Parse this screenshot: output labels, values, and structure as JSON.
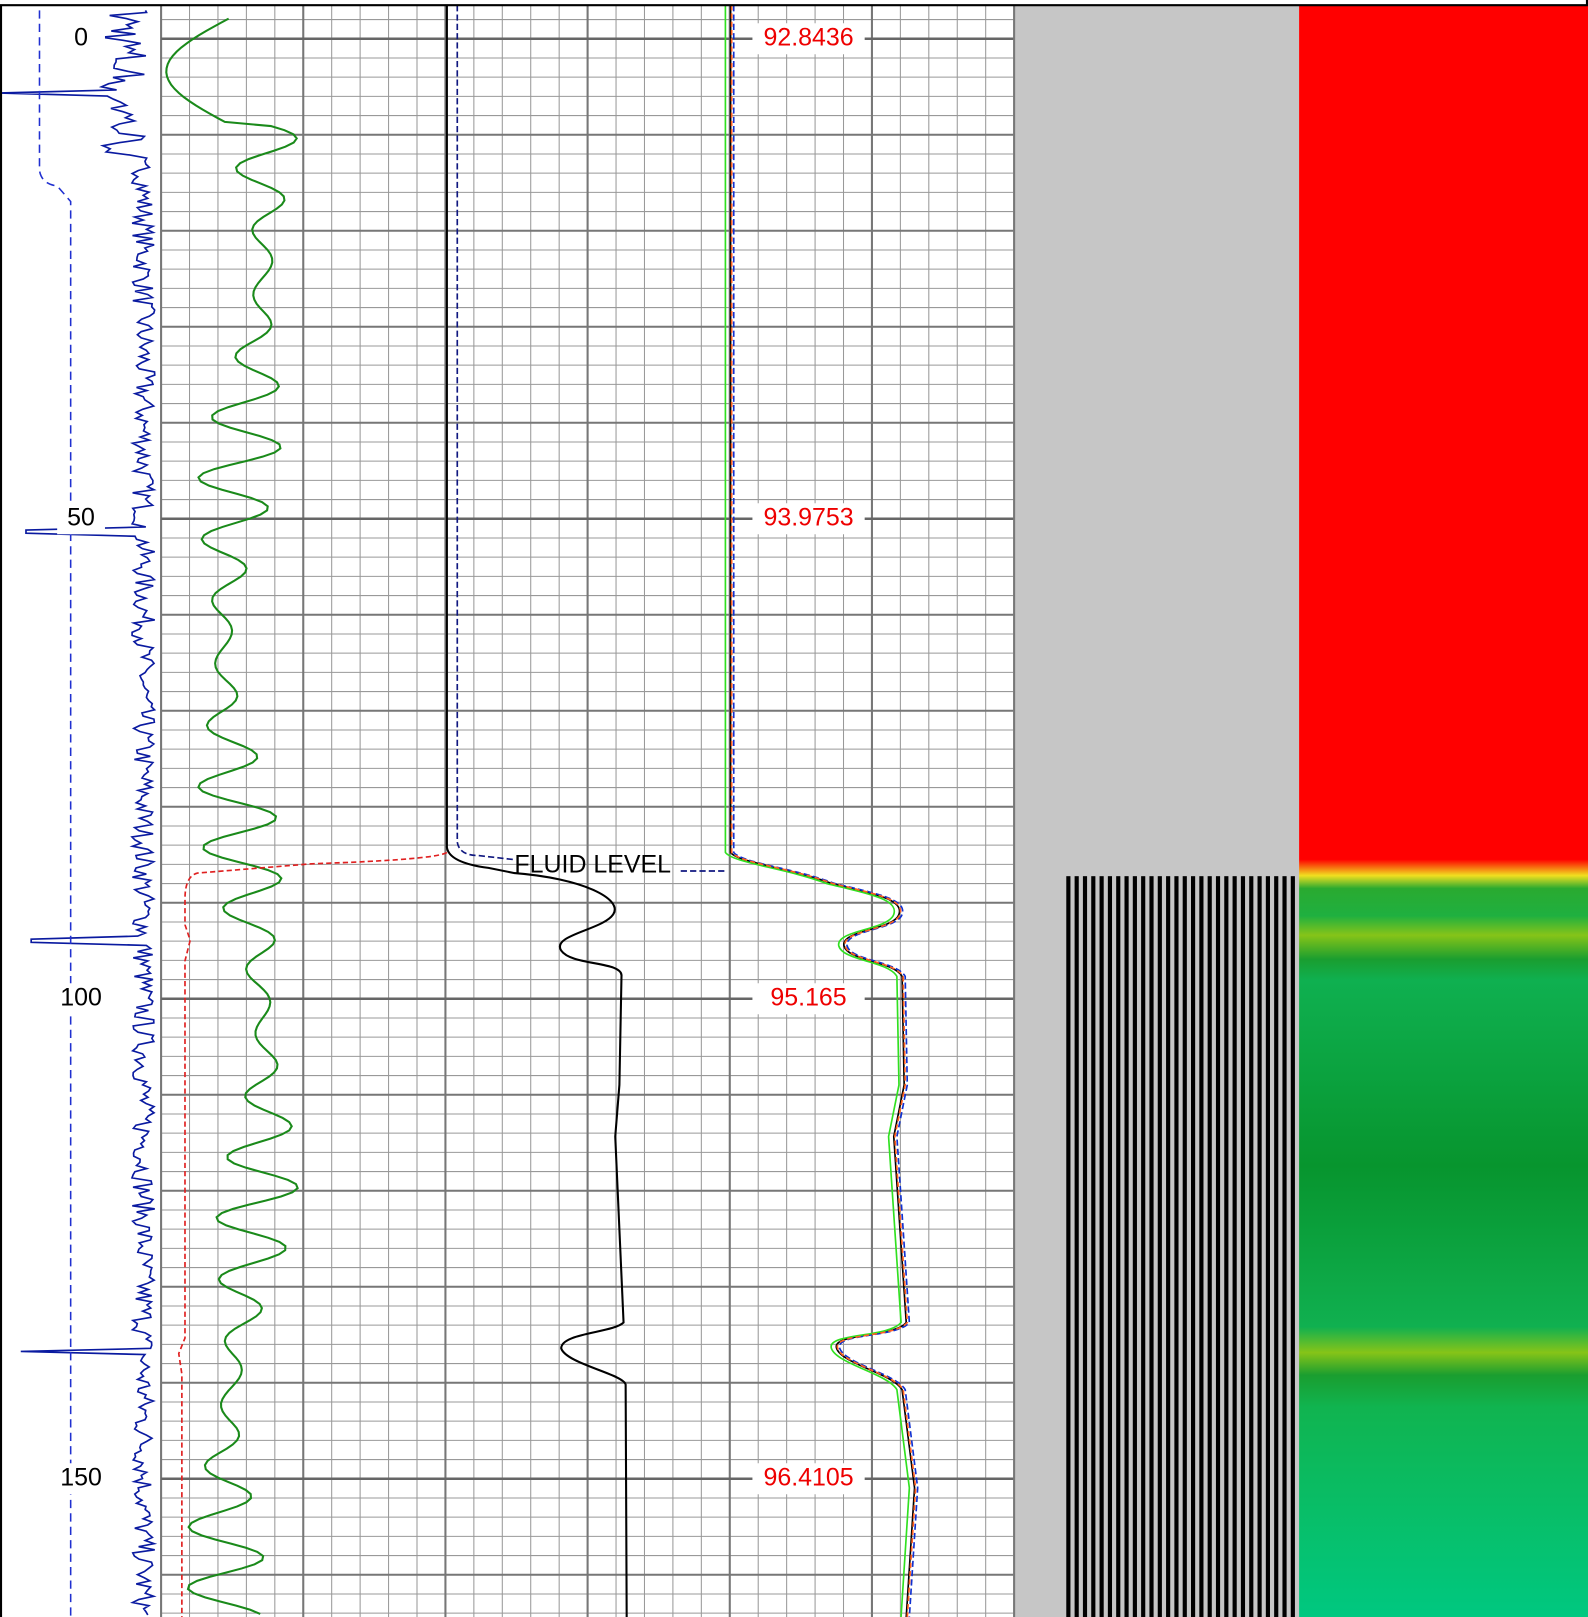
{
  "depth_axis": {
    "lim": [
      -3.5,
      164.4
    ],
    "ticks": [
      0,
      50,
      100,
      150
    ]
  },
  "track_labels": [
    92.8436,
    93.9753,
    95.165,
    96.4105
  ],
  "annotation": "FLUID LEVEL"
}
